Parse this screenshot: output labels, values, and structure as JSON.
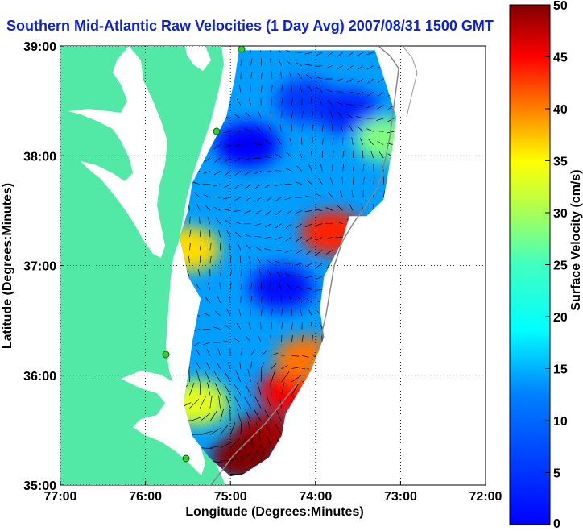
{
  "chart_data": {
    "type": "heatmap",
    "title": "Southern Mid-Atlantic Raw Velocities (1 Day Avg) 2007/08/31 1500 GMT",
    "xlabel": "Longitude (Degrees:Minutes)",
    "ylabel": "Latitude (Degrees:Minutes)",
    "colorbar_label": "Surface Velocity (cm/s)",
    "x_ticks": [
      "77:00",
      "76:00",
      "75:00",
      "74:00",
      "73:00",
      "72:00"
    ],
    "x_tick_values": [
      -77,
      -76,
      -75,
      -74,
      -73,
      -72
    ],
    "y_ticks": [
      "39:00",
      "38:00",
      "37:00",
      "36:00",
      "35:00"
    ],
    "y_tick_values": [
      39,
      38,
      37,
      36,
      35
    ],
    "xlim": [
      -77,
      -72
    ],
    "ylim": [
      35,
      39
    ],
    "colorbar_ticks": [
      0,
      5,
      10,
      15,
      20,
      25,
      30,
      35,
      40,
      45,
      50
    ],
    "colorbar_range": [
      0,
      50
    ],
    "colormap": "jet",
    "grid": true,
    "grid_style": "dotted",
    "land_color": "#52e8a5",
    "station_color": "#33cc33",
    "coverage_polygon_lonlat": [
      [
        -74.9,
        38.96
      ],
      [
        -73.3,
        38.96
      ],
      [
        -73.15,
        38.6
      ],
      [
        -73.05,
        38.35
      ],
      [
        -73.1,
        38.05
      ],
      [
        -73.2,
        37.6
      ],
      [
        -73.4,
        37.45
      ],
      [
        -73.6,
        37.45
      ],
      [
        -73.7,
        37.2
      ],
      [
        -73.9,
        36.9
      ],
      [
        -73.95,
        36.6
      ],
      [
        -73.9,
        36.35
      ],
      [
        -74.05,
        36.05
      ],
      [
        -74.2,
        35.85
      ],
      [
        -74.35,
        35.65
      ],
      [
        -74.4,
        35.45
      ],
      [
        -74.55,
        35.25
      ],
      [
        -74.85,
        35.1
      ],
      [
        -75.0,
        35.08
      ],
      [
        -75.25,
        35.25
      ],
      [
        -75.45,
        35.45
      ],
      [
        -75.55,
        35.75
      ],
      [
        -75.5,
        36.0
      ],
      [
        -75.45,
        36.3
      ],
      [
        -75.35,
        36.7
      ],
      [
        -75.5,
        36.9
      ],
      [
        -75.55,
        37.1
      ],
      [
        -75.6,
        37.25
      ],
      [
        -75.5,
        37.5
      ],
      [
        -75.45,
        37.75
      ],
      [
        -75.25,
        38.05
      ],
      [
        -75.05,
        38.35
      ],
      [
        -74.95,
        38.7
      ]
    ],
    "high_speed_patches": [
      {
        "lon": -74.6,
        "lat": 35.45,
        "value": 48
      },
      {
        "lon": -74.85,
        "lat": 35.25,
        "value": 50
      },
      {
        "lon": -74.3,
        "lat": 35.85,
        "value": 44
      },
      {
        "lon": -74.1,
        "lat": 36.15,
        "value": 38
      },
      {
        "lon": -73.8,
        "lat": 37.3,
        "value": 42
      },
      {
        "lon": -75.5,
        "lat": 37.15,
        "value": 33
      },
      {
        "lon": -75.4,
        "lat": 35.75,
        "value": 30
      },
      {
        "lon": -73.15,
        "lat": 38.15,
        "value": 25
      }
    ],
    "low_speed_patches": [
      {
        "lon": -74.8,
        "lat": 38.1,
        "value": 6
      },
      {
        "lon": -74.4,
        "lat": 36.8,
        "value": 7
      },
      {
        "lon": -74.1,
        "lat": 38.5,
        "value": 9
      },
      {
        "lon": -73.6,
        "lat": 38.4,
        "value": 8
      }
    ]
  }
}
